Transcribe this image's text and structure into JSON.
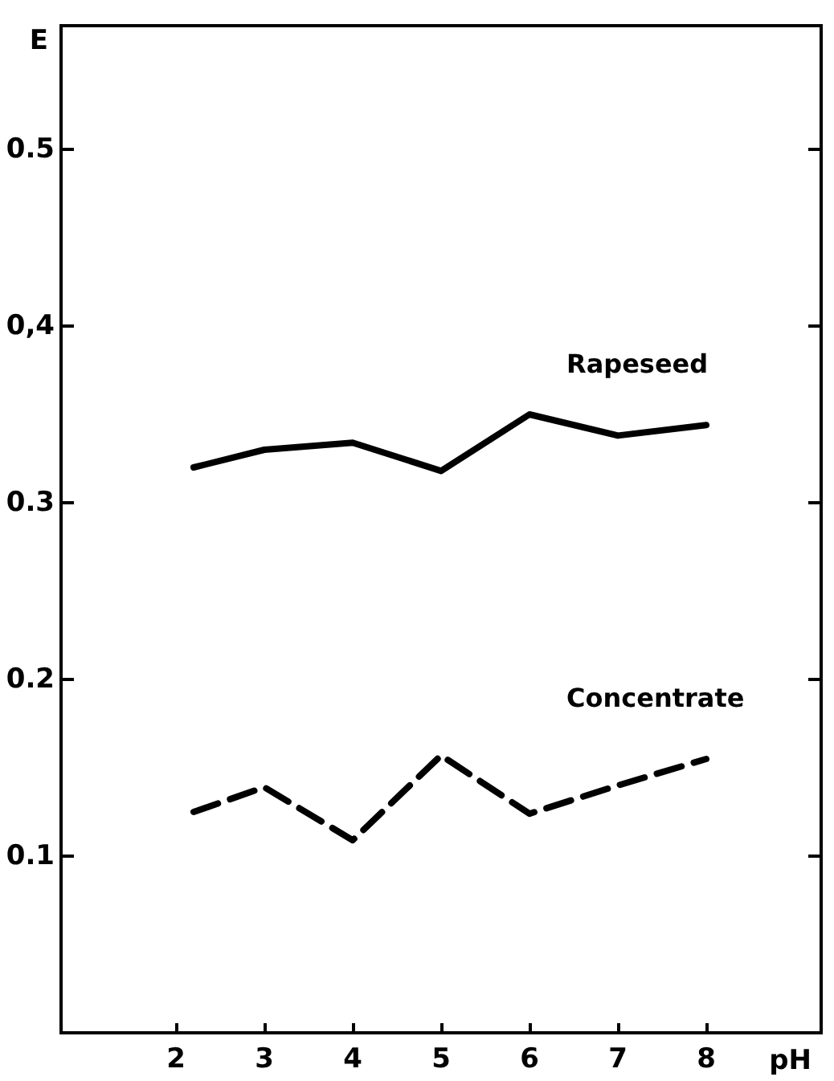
{
  "chart_data": {
    "type": "line",
    "xlabel": "pH",
    "ylabel": "E",
    "xlim": [
      0.7,
      9.3
    ],
    "ylim": [
      0,
      0.57
    ],
    "xticks": [
      2,
      3,
      4,
      5,
      6,
      7,
      8
    ],
    "yticks": [
      0.1,
      0.2,
      0.3,
      {
        "value": 0.4,
        "label": "0,4"
      },
      0.5
    ],
    "grid": false,
    "marker": "none",
    "series": [
      {
        "name": "Rapeseed",
        "color": "#000000",
        "line_style": "solid",
        "x": [
          2.2,
          3,
          4,
          5,
          6,
          7,
          8
        ],
        "values": [
          0.32,
          0.33,
          0.334,
          0.318,
          0.35,
          0.338,
          0.344
        ]
      },
      {
        "name": "Concentrate",
        "color": "#000000",
        "line_style": "dashed",
        "x": [
          2.2,
          3,
          4,
          5,
          6,
          7,
          8
        ],
        "values": [
          0.125,
          0.139,
          0.109,
          0.157,
          0.124,
          0.14,
          0.155
        ]
      }
    ]
  }
}
